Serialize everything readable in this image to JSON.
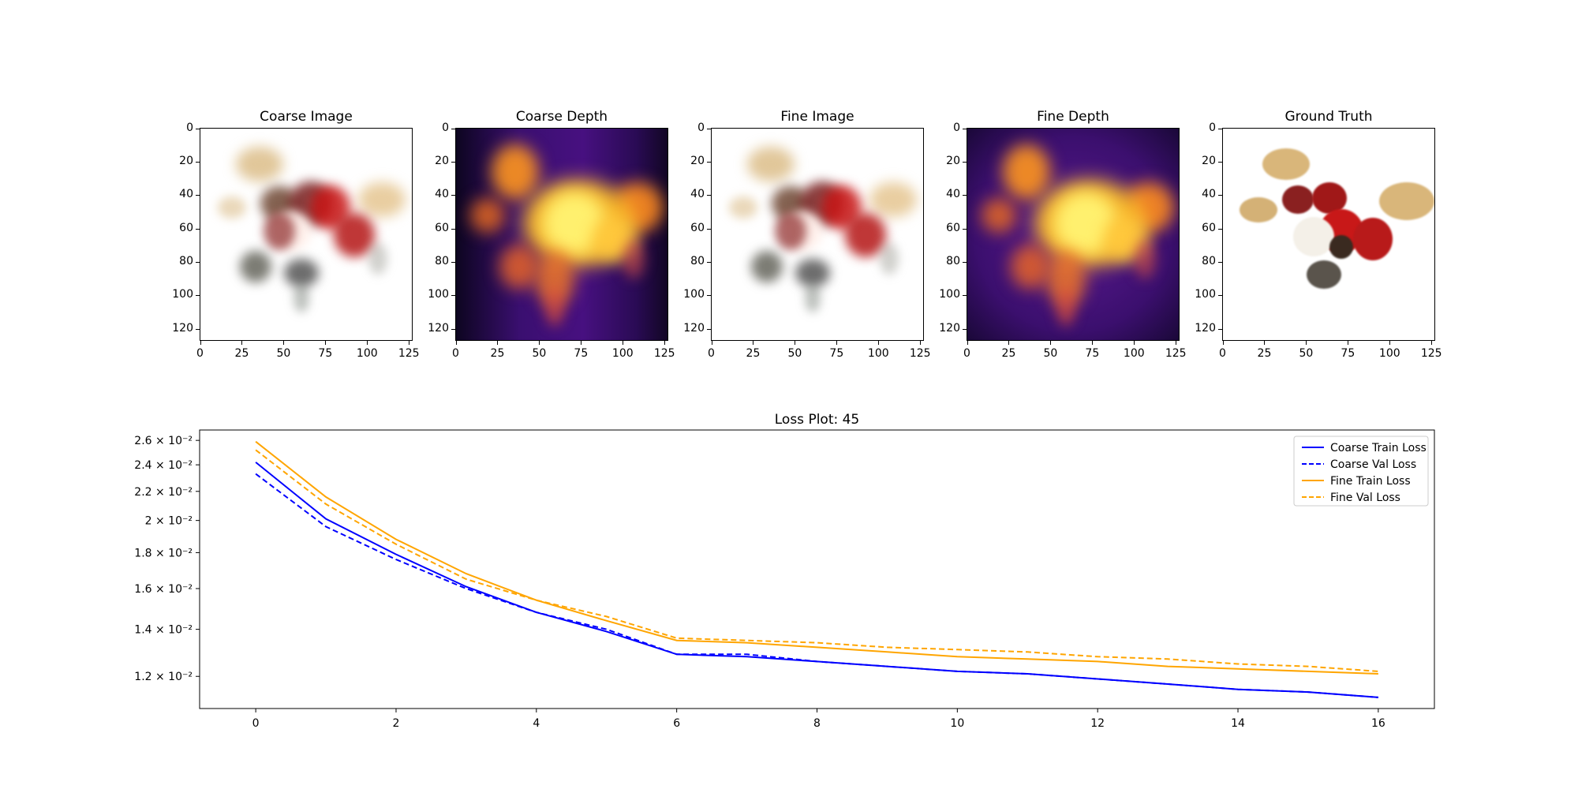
{
  "panels": [
    {
      "title": "Coarse Image",
      "kind": "rgb"
    },
    {
      "title": "Coarse Depth",
      "kind": "depth"
    },
    {
      "title": "Fine Image",
      "kind": "rgb"
    },
    {
      "title": "Fine Depth",
      "kind": "depth-noisy"
    },
    {
      "title": "Ground Truth",
      "kind": "gt"
    }
  ],
  "image_axis": {
    "y_ticks": [
      "0",
      "20",
      "40",
      "60",
      "80",
      "100",
      "120"
    ],
    "x_ticks": [
      "0",
      "25",
      "50",
      "75",
      "100",
      "125"
    ]
  },
  "chart_data": {
    "type": "line",
    "title": "Loss Plot: 45",
    "yscale": "log",
    "xlim": [
      -0.8,
      16.8
    ],
    "ylim": [
      0.0108,
      0.0269
    ],
    "x_ticks": [
      0,
      2,
      4,
      6,
      8,
      10,
      12,
      14,
      16
    ],
    "y_ticks": [
      0.012,
      0.014,
      0.016,
      0.018,
      0.02,
      0.022,
      0.024,
      0.026
    ],
    "y_tick_labels": [
      "1.2 × 10⁻²",
      "1.4 × 10⁻²",
      "1.6 × 10⁻²",
      "1.8 × 10⁻²",
      "2 × 10⁻²",
      "2.2 × 10⁻²",
      "2.4 × 10⁻²",
      "2.6 × 10⁻²"
    ],
    "legend_position": "top-right",
    "series": [
      {
        "name": "Coarse Train Loss",
        "color": "#0000ff",
        "dash": "solid",
        "x": [
          0,
          1,
          2,
          3,
          4,
          5,
          6,
          7,
          8,
          9,
          10,
          11,
          12,
          13,
          14,
          15,
          16
        ],
        "y": [
          0.0242,
          0.0201,
          0.0179,
          0.0161,
          0.0148,
          0.0139,
          0.0129,
          0.0128,
          0.0126,
          0.0124,
          0.0122,
          0.0121,
          0.0119,
          0.0117,
          0.0115,
          0.0114,
          0.0112
        ]
      },
      {
        "name": "Coarse Val Loss",
        "color": "#0000ff",
        "dash": "dashed",
        "x": [
          0,
          1,
          2,
          3,
          4,
          5,
          6,
          7,
          8,
          9,
          10,
          11,
          12,
          13,
          14,
          15,
          16
        ],
        "y": [
          0.0233,
          0.0196,
          0.0176,
          0.016,
          0.0148,
          0.014,
          0.0129,
          0.0129,
          0.0126,
          0.0124,
          0.0122,
          0.0121,
          0.0119,
          0.0117,
          0.0115,
          0.0114,
          0.0112
        ]
      },
      {
        "name": "Fine Train Loss",
        "color": "#ffa500",
        "dash": "solid",
        "x": [
          0,
          1,
          2,
          3,
          4,
          5,
          6,
          7,
          8,
          9,
          10,
          11,
          12,
          13,
          14,
          15,
          16
        ],
        "y": [
          0.0259,
          0.0216,
          0.0188,
          0.0168,
          0.0154,
          0.0144,
          0.0135,
          0.0134,
          0.0132,
          0.013,
          0.0128,
          0.0127,
          0.0126,
          0.0124,
          0.0123,
          0.0122,
          0.0121
        ]
      },
      {
        "name": "Fine Val Loss",
        "color": "#ffa500",
        "dash": "dashed",
        "x": [
          0,
          1,
          2,
          3,
          4,
          5,
          6,
          7,
          8,
          9,
          10,
          11,
          12,
          13,
          14,
          15,
          16
        ],
        "y": [
          0.0252,
          0.0211,
          0.0185,
          0.0165,
          0.0154,
          0.0146,
          0.0136,
          0.0135,
          0.0134,
          0.0132,
          0.0131,
          0.013,
          0.0128,
          0.0127,
          0.0125,
          0.0124,
          0.0122
        ]
      }
    ]
  }
}
